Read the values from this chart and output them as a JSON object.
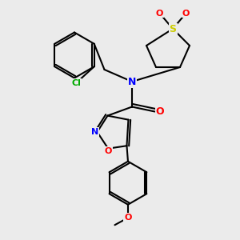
{
  "bg_color": "#ebebeb",
  "bond_color": "#000000",
  "bond_width": 1.5,
  "atom_colors": {
    "N": "#0000ff",
    "O": "#ff0000",
    "S": "#cccc00",
    "Cl": "#00aa00",
    "C": "#000000"
  },
  "figsize": [
    3.0,
    3.0
  ],
  "dpi": 100
}
